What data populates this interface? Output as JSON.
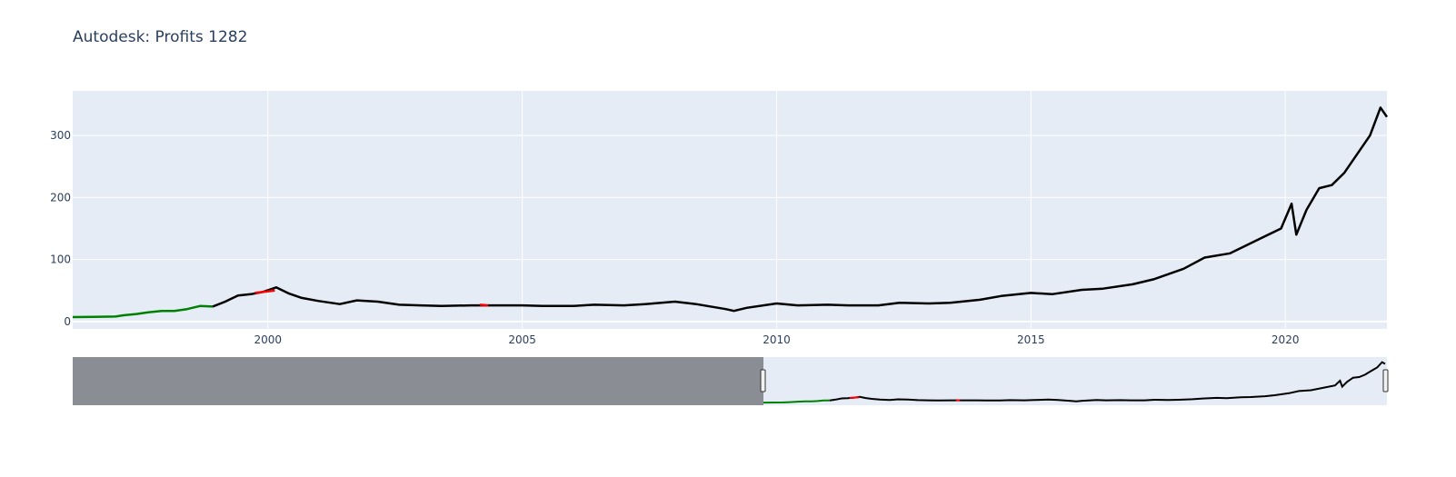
{
  "chart_data": {
    "type": "line",
    "title": "Autodesk: Profits 1282",
    "xlabel": "",
    "ylabel": "",
    "x_range": [
      "1996-03-01",
      "2021-12-31"
    ],
    "y_range": [
      -12,
      372
    ],
    "grid": true,
    "legend": "none",
    "x_ticks": [
      {
        "value": "2000-01-01",
        "label": "2000"
      },
      {
        "value": "2005-01-01",
        "label": "2005"
      },
      {
        "value": "2010-01-01",
        "label": "2010"
      },
      {
        "value": "2015-01-01",
        "label": "2015"
      },
      {
        "value": "2020-01-01",
        "label": "2020"
      }
    ],
    "y_ticks": [
      {
        "value": 0,
        "label": "0"
      },
      {
        "value": 100,
        "label": "100"
      },
      {
        "value": 200,
        "label": "200"
      },
      {
        "value": 300,
        "label": "300"
      }
    ],
    "colors": {
      "plot_bg": "#e5ecf6",
      "line_main": "#000000",
      "line_up": "#008000",
      "line_down": "#ff0000",
      "rangeslider_mask": "#8a8d93"
    },
    "series": [
      {
        "color": "#008000",
        "points": [
          [
            "1996-03-01",
            7
          ],
          [
            "1996-08-01",
            7.5
          ],
          [
            "1997-01-01",
            8
          ],
          [
            "1997-03-01",
            10
          ],
          [
            "1997-06-01",
            12
          ],
          [
            "1997-09-01",
            15
          ],
          [
            "1997-12-01",
            17
          ],
          [
            "1998-03-01",
            17
          ],
          [
            "1998-06-01",
            20
          ],
          [
            "1998-09-01",
            25
          ],
          [
            "1998-12-01",
            24
          ]
        ]
      },
      {
        "color": "#000000",
        "points": [
          [
            "1998-12-01",
            24
          ],
          [
            "1999-03-01",
            32
          ],
          [
            "1999-06-01",
            42
          ],
          [
            "1999-09-01",
            44
          ],
          [
            "1999-12-01",
            48
          ],
          [
            "2000-03-01",
            55
          ],
          [
            "2000-06-01",
            45
          ],
          [
            "2000-09-01",
            38
          ],
          [
            "2001-01-01",
            33
          ],
          [
            "2001-06-01",
            28
          ],
          [
            "2001-10-01",
            34
          ],
          [
            "2002-03-01",
            32
          ],
          [
            "2002-08-01",
            27
          ],
          [
            "2003-01-01",
            26
          ],
          [
            "2003-06-01",
            25
          ],
          [
            "2004-01-01",
            26
          ],
          [
            "2004-06-01",
            26
          ],
          [
            "2005-01-01",
            26
          ],
          [
            "2005-06-01",
            25
          ],
          [
            "2006-01-01",
            25
          ],
          [
            "2006-06-01",
            27
          ],
          [
            "2007-01-01",
            26
          ],
          [
            "2007-06-01",
            28
          ],
          [
            "2008-01-01",
            32
          ],
          [
            "2008-06-01",
            28
          ],
          [
            "2009-01-01",
            20
          ],
          [
            "2009-03-01",
            17
          ],
          [
            "2009-06-01",
            22
          ],
          [
            "2010-01-01",
            29
          ],
          [
            "2010-06-01",
            26
          ],
          [
            "2011-01-01",
            27
          ],
          [
            "2011-06-01",
            26
          ],
          [
            "2012-01-01",
            26
          ],
          [
            "2012-06-01",
            30
          ],
          [
            "2013-01-01",
            29
          ],
          [
            "2013-06-01",
            30
          ],
          [
            "2014-01-01",
            35
          ],
          [
            "2014-06-01",
            41
          ],
          [
            "2015-01-01",
            46
          ],
          [
            "2015-06-01",
            44
          ],
          [
            "2016-01-01",
            51
          ],
          [
            "2016-06-01",
            53
          ],
          [
            "2017-01-01",
            60
          ],
          [
            "2017-06-01",
            68
          ],
          [
            "2018-01-01",
            85
          ],
          [
            "2018-06-01",
            103
          ],
          [
            "2018-12-01",
            110
          ],
          [
            "2019-06-01",
            130
          ],
          [
            "2019-12-01",
            150
          ],
          [
            "2020-02-15",
            190
          ],
          [
            "2020-03-20",
            140
          ],
          [
            "2020-06-01",
            180
          ],
          [
            "2020-09-01",
            215
          ],
          [
            "2020-12-01",
            220
          ],
          [
            "2021-03-01",
            240
          ],
          [
            "2021-06-01",
            270
          ],
          [
            "2021-09-01",
            300
          ],
          [
            "2021-11-15",
            345
          ],
          [
            "2021-12-31",
            330
          ]
        ]
      },
      {
        "color": "#ff0000",
        "points": [
          [
            "1999-10-01",
            46
          ],
          [
            "2000-02-20",
            50
          ]
        ]
      },
      {
        "color": "#ff0000",
        "points": [
          [
            "2004-03-01",
            27
          ],
          [
            "2004-05-01",
            26
          ]
        ]
      }
    ]
  }
}
